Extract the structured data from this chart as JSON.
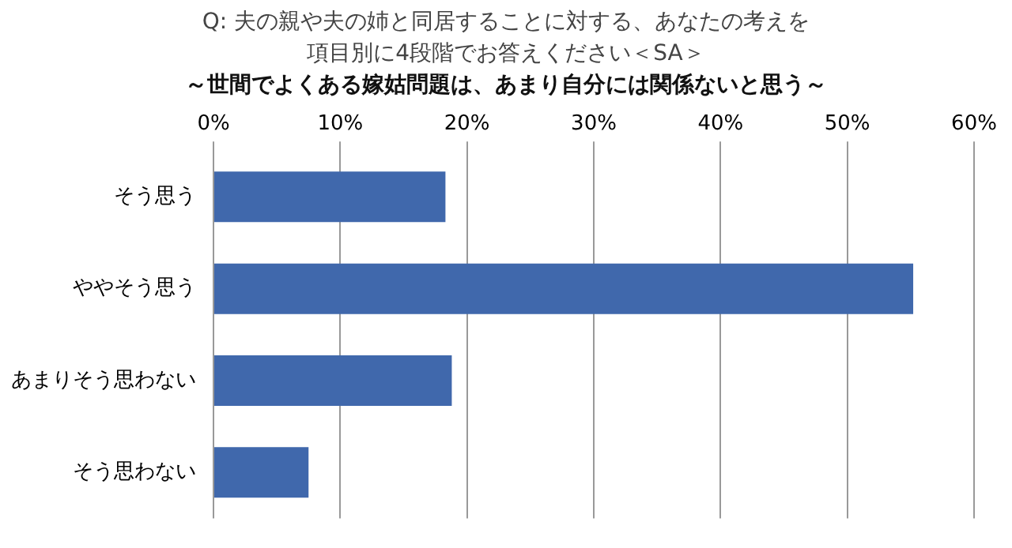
{
  "chart_data": {
    "type": "bar",
    "orientation": "horizontal",
    "title": "Q: 夫の親や夫の姉と同居することに対する、あなたの考えを項目別に4段階でお答えください＜SA＞",
    "subtitle": "～世間でよくある嫁姑問題は、あまり自分には関係ないと思う～",
    "categories": [
      "そう思う",
      "ややそう思う",
      "あまりそう思わない",
      "そう思わない"
    ],
    "values": [
      18.3,
      55.2,
      18.8,
      7.5
    ],
    "color": "#4068ac",
    "xlim": [
      0,
      60
    ],
    "xticks": [
      {
        "value": 0,
        "label": "0%"
      },
      {
        "value": 10,
        "label": "10%"
      },
      {
        "value": 20,
        "label": "20%"
      },
      {
        "value": 30,
        "label": "30%"
      },
      {
        "value": 40,
        "label": "40%"
      },
      {
        "value": 50,
        "label": "50%"
      },
      {
        "value": 60,
        "label": "60%"
      }
    ],
    "grid": "x",
    "legend": false
  }
}
